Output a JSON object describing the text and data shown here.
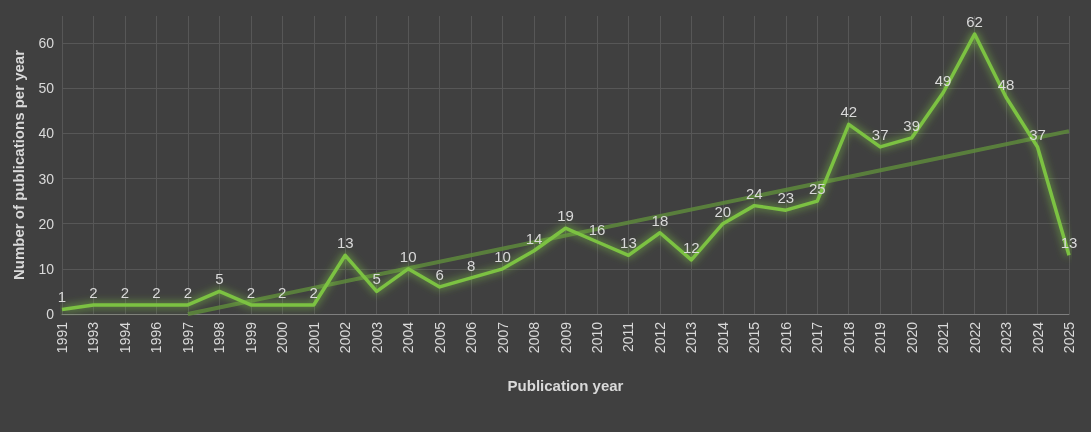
{
  "chart_data": {
    "type": "line",
    "xlabel": "Publication year",
    "ylabel": "Number of publications per year",
    "categories": [
      "1991",
      "1993",
      "1994",
      "1996",
      "1997",
      "1998",
      "1999",
      "2000",
      "2001",
      "2002",
      "2003",
      "2004",
      "2005",
      "2006",
      "2007",
      "2008",
      "2009",
      "2010",
      "2011",
      "2012",
      "2013",
      "2014",
      "2015",
      "2016",
      "2017",
      "2018",
      "2019",
      "2020",
      "2021",
      "2022",
      "2023",
      "2024",
      "2025"
    ],
    "series": [
      {
        "color": "#7cc242",
        "values": [
          1,
          2,
          2,
          2,
          2,
          5,
          2,
          2,
          2,
          13,
          5,
          10,
          6,
          8,
          10,
          14,
          19,
          16,
          13,
          18,
          12,
          20,
          24,
          23,
          25,
          42,
          37,
          39,
          49,
          62,
          48,
          37,
          13
        ],
        "value_labels": [
          "1",
          "2",
          "2",
          "2",
          "2",
          "5",
          "2",
          "2",
          "2",
          "13",
          "5",
          "10",
          "6",
          "8",
          "10",
          "14",
          "19",
          "16",
          "13",
          "18",
          "12",
          "20",
          "24",
          "23",
          "25",
          "42",
          "37",
          "39",
          "49",
          "62",
          "48",
          "37",
          "13"
        ]
      },
      {
        "type": "line",
        "color": "#5e8a3c",
        "values": [
          null,
          null,
          null,
          null,
          0,
          null,
          null,
          null,
          null,
          null,
          null,
          null,
          null,
          null,
          null,
          null,
          null,
          null,
          null,
          null,
          null,
          null,
          null,
          null,
          null,
          null,
          null,
          null,
          null,
          null,
          null,
          null,
          40.5
        ]
      }
    ],
    "ylim": [
      0,
      66
    ],
    "yticks": [
      0,
      10,
      20,
      30,
      40,
      50,
      60
    ],
    "grid": true,
    "marker": "none"
  }
}
